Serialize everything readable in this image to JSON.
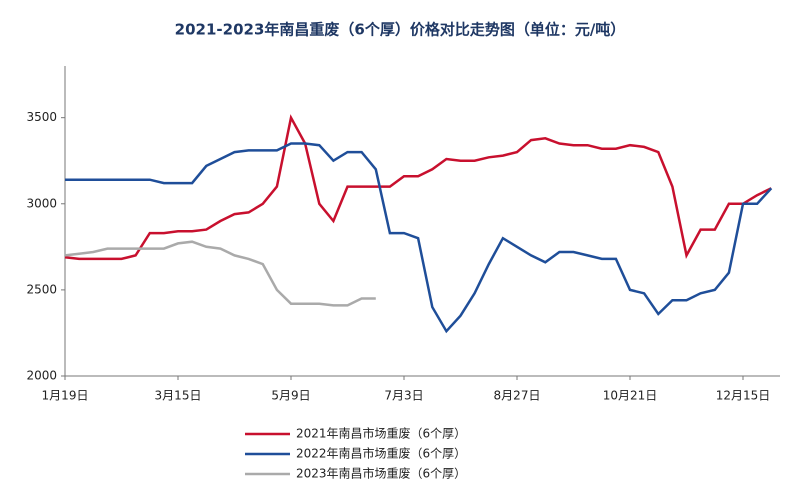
{
  "chart_data": {
    "type": "line",
    "title": "2021-2023年南昌重废（6个厚）价格对比走势图（单位：元/吨）",
    "categories": [
      "1月19日",
      null,
      null,
      null,
      null,
      null,
      null,
      null,
      "3月15日",
      null,
      null,
      null,
      null,
      null,
      null,
      null,
      "5月9日",
      null,
      null,
      null,
      null,
      null,
      null,
      null,
      "7月3日",
      null,
      null,
      null,
      null,
      null,
      null,
      null,
      "8月27日",
      null,
      null,
      null,
      null,
      null,
      null,
      null,
      "10月21日",
      null,
      null,
      null,
      null,
      null,
      null,
      null,
      "12月15日",
      null,
      null
    ],
    "series": [
      {
        "name": "2021年南昌市场重废（6个厚）",
        "color": "#c8102e",
        "values": [
          2690,
          2680,
          2680,
          2680,
          2680,
          2700,
          2830,
          2830,
          2840,
          2840,
          2850,
          2900,
          2940,
          2950,
          3000,
          3100,
          3500,
          3350,
          3000,
          2900,
          3100,
          3100,
          3100,
          3100,
          3160,
          3160,
          3200,
          3260,
          3250,
          3250,
          3270,
          3280,
          3300,
          3370,
          3380,
          3350,
          3340,
          3340,
          3320,
          3320,
          3340,
          3330,
          3300,
          3100,
          2700,
          2850,
          2850,
          3000,
          3000,
          3050,
          3090
        ]
      },
      {
        "name": "2022年南昌市场重废（6个厚）",
        "color": "#1f4e99",
        "values": [
          3140,
          3140,
          3140,
          3140,
          3140,
          3140,
          3140,
          3120,
          3120,
          3120,
          3220,
          3260,
          3300,
          3310,
          3310,
          3310,
          3350,
          3350,
          3340,
          3250,
          3300,
          3300,
          3200,
          2830,
          2830,
          2800,
          2400,
          2260,
          2350,
          2480,
          2650,
          2800,
          2750,
          2700,
          2660,
          2720,
          2720,
          2700,
          2680,
          2680,
          2500,
          2480,
          2360,
          2440,
          2440,
          2480,
          2500,
          2600,
          3000,
          3000,
          3090
        ]
      },
      {
        "name": "2023年南昌市场重废（6个厚）",
        "color": "#aaaaaa",
        "values": [
          2700,
          2710,
          2720,
          2740,
          2740,
          2740,
          2740,
          2740,
          2770,
          2780,
          2750,
          2740,
          2700,
          2680,
          2650,
          2500,
          2420,
          2420,
          2420,
          2410,
          2410,
          2450,
          2450,
          null,
          null,
          null,
          null,
          null,
          null,
          null,
          null,
          null,
          null,
          null,
          null,
          null,
          null,
          null,
          null,
          null,
          null,
          null,
          null,
          null,
          null,
          null,
          null,
          null,
          null,
          null,
          null
        ]
      }
    ],
    "ylim": [
      2000,
      3800
    ],
    "yticks": [
      2000,
      2500,
      3000,
      3500
    ]
  }
}
